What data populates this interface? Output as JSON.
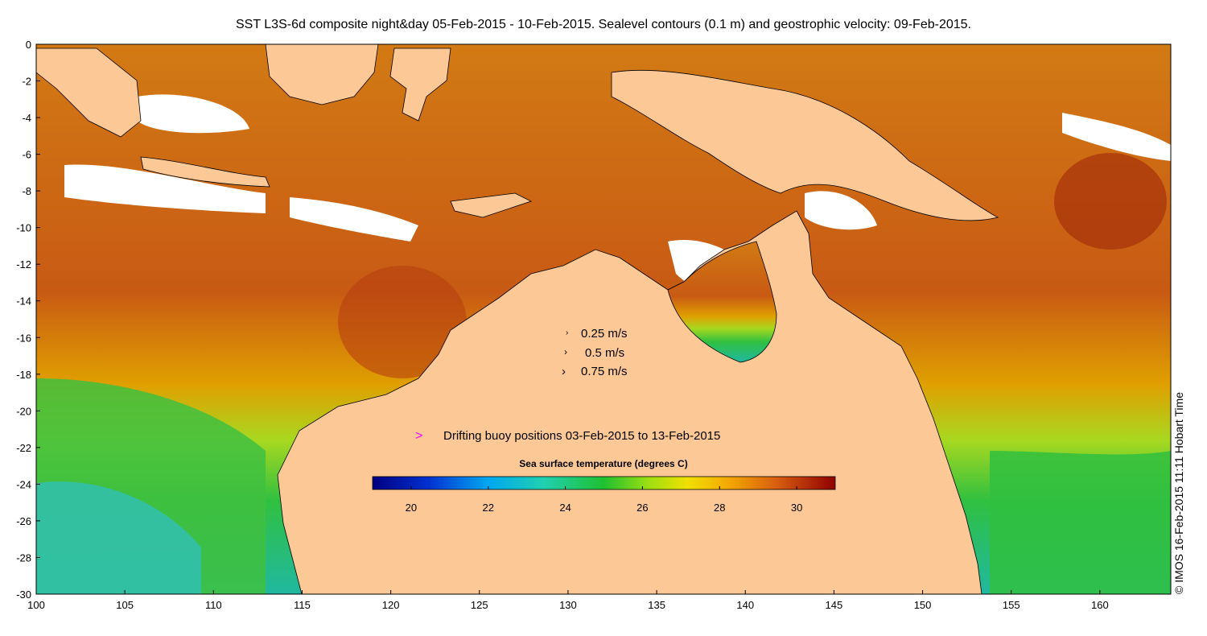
{
  "title": "SST L3S-6d composite night&day 05-Feb-2015 - 10-Feb-2015. Sealevel contours (0.1 m) and geostrophic velocity: 09-Feb-2015.",
  "axes": {
    "x_ticks": [
      "100",
      "105",
      "110",
      "115",
      "120",
      "125",
      "130",
      "135",
      "140",
      "145",
      "150",
      "155",
      "160"
    ],
    "y_ticks": [
      "0",
      "-2",
      "-4",
      "-6",
      "-8",
      "-10",
      "-12",
      "-14",
      "-16",
      "-18",
      "-20",
      "-22",
      "-24",
      "-26",
      "-28",
      "-30"
    ],
    "lon_range": [
      100,
      164
    ],
    "lat_range": [
      -30,
      0
    ]
  },
  "velocity_legend": [
    {
      "label": "0.25 m/s",
      "speed": 0.25
    },
    {
      "label": "0.5 m/s",
      "speed": 0.5
    },
    {
      "label": "0.75 m/s",
      "speed": 0.75
    }
  ],
  "buoy_legend": {
    "label": "Drifting buoy positions 03-Feb-2015 to 13-Feb-2015",
    "color": "#ff00ff"
  },
  "colorbar": {
    "title": "Sea surface temperature (degrees C)",
    "range": [
      19,
      31
    ],
    "ticks": [
      "20",
      "22",
      "24",
      "26",
      "28",
      "30"
    ]
  },
  "credit": "© IMOS 16-Feb-2015 11:11 Hobart Time",
  "colors": {
    "land": "#fcc896",
    "cloud": "#ffffff",
    "warm": "#c85a14",
    "cool": "#22c050"
  }
}
